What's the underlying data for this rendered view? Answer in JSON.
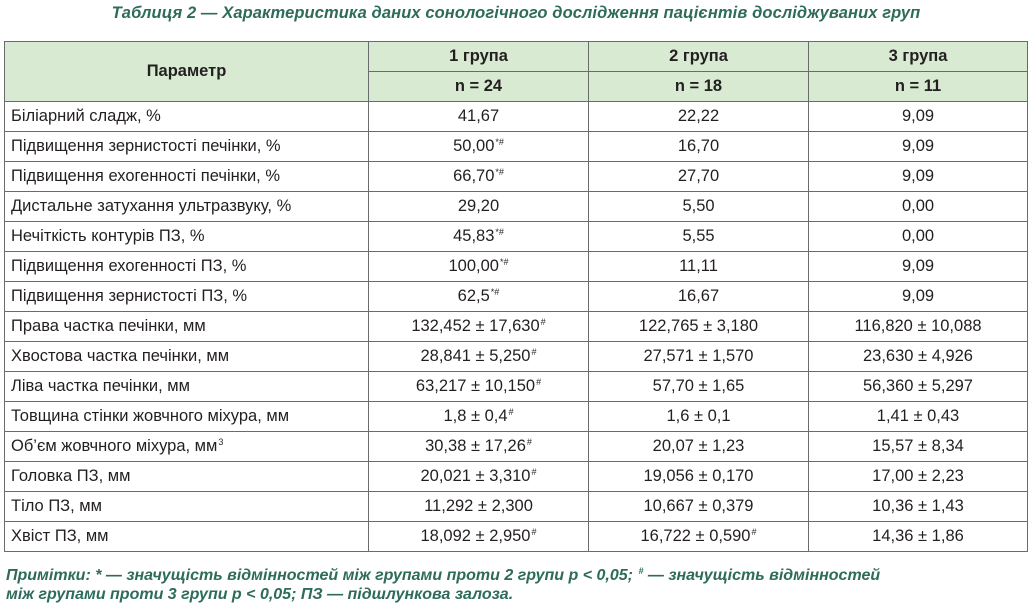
{
  "caption": "Таблиця 2 — Характеристика даних сонологічного дослідження пацієнтів досліджуваних груп",
  "header": {
    "param_label": "Параметр",
    "groups": [
      {
        "name": "1 група",
        "n": "n = 24"
      },
      {
        "name": "2 група",
        "n": "n = 18"
      },
      {
        "name": "3 група",
        "n": "n = 11"
      }
    ]
  },
  "rows": [
    {
      "param": "Біліарний сладж, %",
      "sup": "",
      "cells": [
        {
          "v": "41,67",
          "s": ""
        },
        {
          "v": "22,22",
          "s": ""
        },
        {
          "v": "9,09",
          "s": ""
        }
      ]
    },
    {
      "param": "Підвищення зернистості печінки, %",
      "sup": "",
      "cells": [
        {
          "v": "50,00",
          "s": "*#"
        },
        {
          "v": "16,70",
          "s": ""
        },
        {
          "v": "9,09",
          "s": ""
        }
      ]
    },
    {
      "param": "Підвищення ехогенності печінки, %",
      "sup": "",
      "cells": [
        {
          "v": "66,70",
          "s": "*#"
        },
        {
          "v": "27,70",
          "s": ""
        },
        {
          "v": "9,09",
          "s": ""
        }
      ]
    },
    {
      "param": "Дистальне затухання ультразвуку, %",
      "sup": "",
      "cells": [
        {
          "v": "29,20",
          "s": ""
        },
        {
          "v": "5,50",
          "s": ""
        },
        {
          "v": "0,00",
          "s": ""
        }
      ]
    },
    {
      "param": "Нечіткість контурів ПЗ, %",
      "sup": "",
      "cells": [
        {
          "v": "45,83",
          "s": "*#"
        },
        {
          "v": "5,55",
          "s": ""
        },
        {
          "v": "0,00",
          "s": ""
        }
      ]
    },
    {
      "param": "Підвищення ехогенності ПЗ, %",
      "sup": "",
      "cells": [
        {
          "v": "100,00",
          "s": "*#"
        },
        {
          "v": "11,11",
          "s": ""
        },
        {
          "v": "9,09",
          "s": ""
        }
      ]
    },
    {
      "param": "Підвищення зернистості ПЗ, %",
      "sup": "",
      "cells": [
        {
          "v": "62,5",
          "s": "*#"
        },
        {
          "v": "16,67",
          "s": ""
        },
        {
          "v": "9,09",
          "s": ""
        }
      ]
    },
    {
      "param": "Права частка печінки, мм",
      "sup": "",
      "cells": [
        {
          "v": "132,452 ± 17,630",
          "s": "#"
        },
        {
          "v": "122,765 ± 3,180",
          "s": ""
        },
        {
          "v": "116,820 ± 10,088",
          "s": ""
        }
      ]
    },
    {
      "param": "Хвостова частка печінки, мм",
      "sup": "",
      "cells": [
        {
          "v": "28,841 ± 5,250",
          "s": "#"
        },
        {
          "v": "27,571 ± 1,570",
          "s": ""
        },
        {
          "v": "23,630 ± 4,926",
          "s": ""
        }
      ]
    },
    {
      "param": "Ліва частка печінки, мм",
      "sup": "",
      "cells": [
        {
          "v": "63,217 ± 10,150",
          "s": "#"
        },
        {
          "v": "57,70 ± 1,65",
          "s": ""
        },
        {
          "v": "56,360 ± 5,297",
          "s": ""
        }
      ]
    },
    {
      "param": "Товщина стінки жовчного міхура, мм",
      "sup": "",
      "cells": [
        {
          "v": "1,8 ± 0,4",
          "s": "#"
        },
        {
          "v": "1,6 ± 0,1",
          "s": ""
        },
        {
          "v": "1,41 ± 0,43",
          "s": ""
        }
      ]
    },
    {
      "param": "Об’єм жовчного міхура, мм",
      "sup": "3",
      "cells": [
        {
          "v": "30,38 ± 17,26",
          "s": "#"
        },
        {
          "v": "20,07 ± 1,23",
          "s": ""
        },
        {
          "v": "15,57 ± 8,34",
          "s": ""
        }
      ]
    },
    {
      "param": "Головка ПЗ, мм",
      "sup": "",
      "cells": [
        {
          "v": "20,021 ± 3,310",
          "s": "#"
        },
        {
          "v": "19,056 ± 0,170",
          "s": ""
        },
        {
          "v": "17,00 ± 2,23",
          "s": ""
        }
      ]
    },
    {
      "param": "Тіло ПЗ, мм",
      "sup": "",
      "cells": [
        {
          "v": "11,292 ± 2,300",
          "s": ""
        },
        {
          "v": "10,667 ± 0,379",
          "s": ""
        },
        {
          "v": "10,36 ± 1,43",
          "s": ""
        }
      ]
    },
    {
      "param": "Хвіст ПЗ, мм",
      "sup": "",
      "cells": [
        {
          "v": "18,092 ± 2,950",
          "s": "#"
        },
        {
          "v": "16,722 ± 0,590",
          "s": "#"
        },
        {
          "v": "14,36 ± 1,86",
          "s": ""
        }
      ]
    }
  ],
  "notes": {
    "label": "Примітки:",
    "line1_a": " * — значущість відмінностей між групами проти 2 групи р < 0,05; ",
    "line1_sym": "#",
    "line1_b": " — значущість відмінностей",
    "line2": "між групами проти 3 групи р < 0,05; ПЗ — підшлункова залоза."
  },
  "colors": {
    "accent": "#2d6b5a",
    "header_bg": "#d9ead3",
    "border": "#6b6b6b"
  }
}
